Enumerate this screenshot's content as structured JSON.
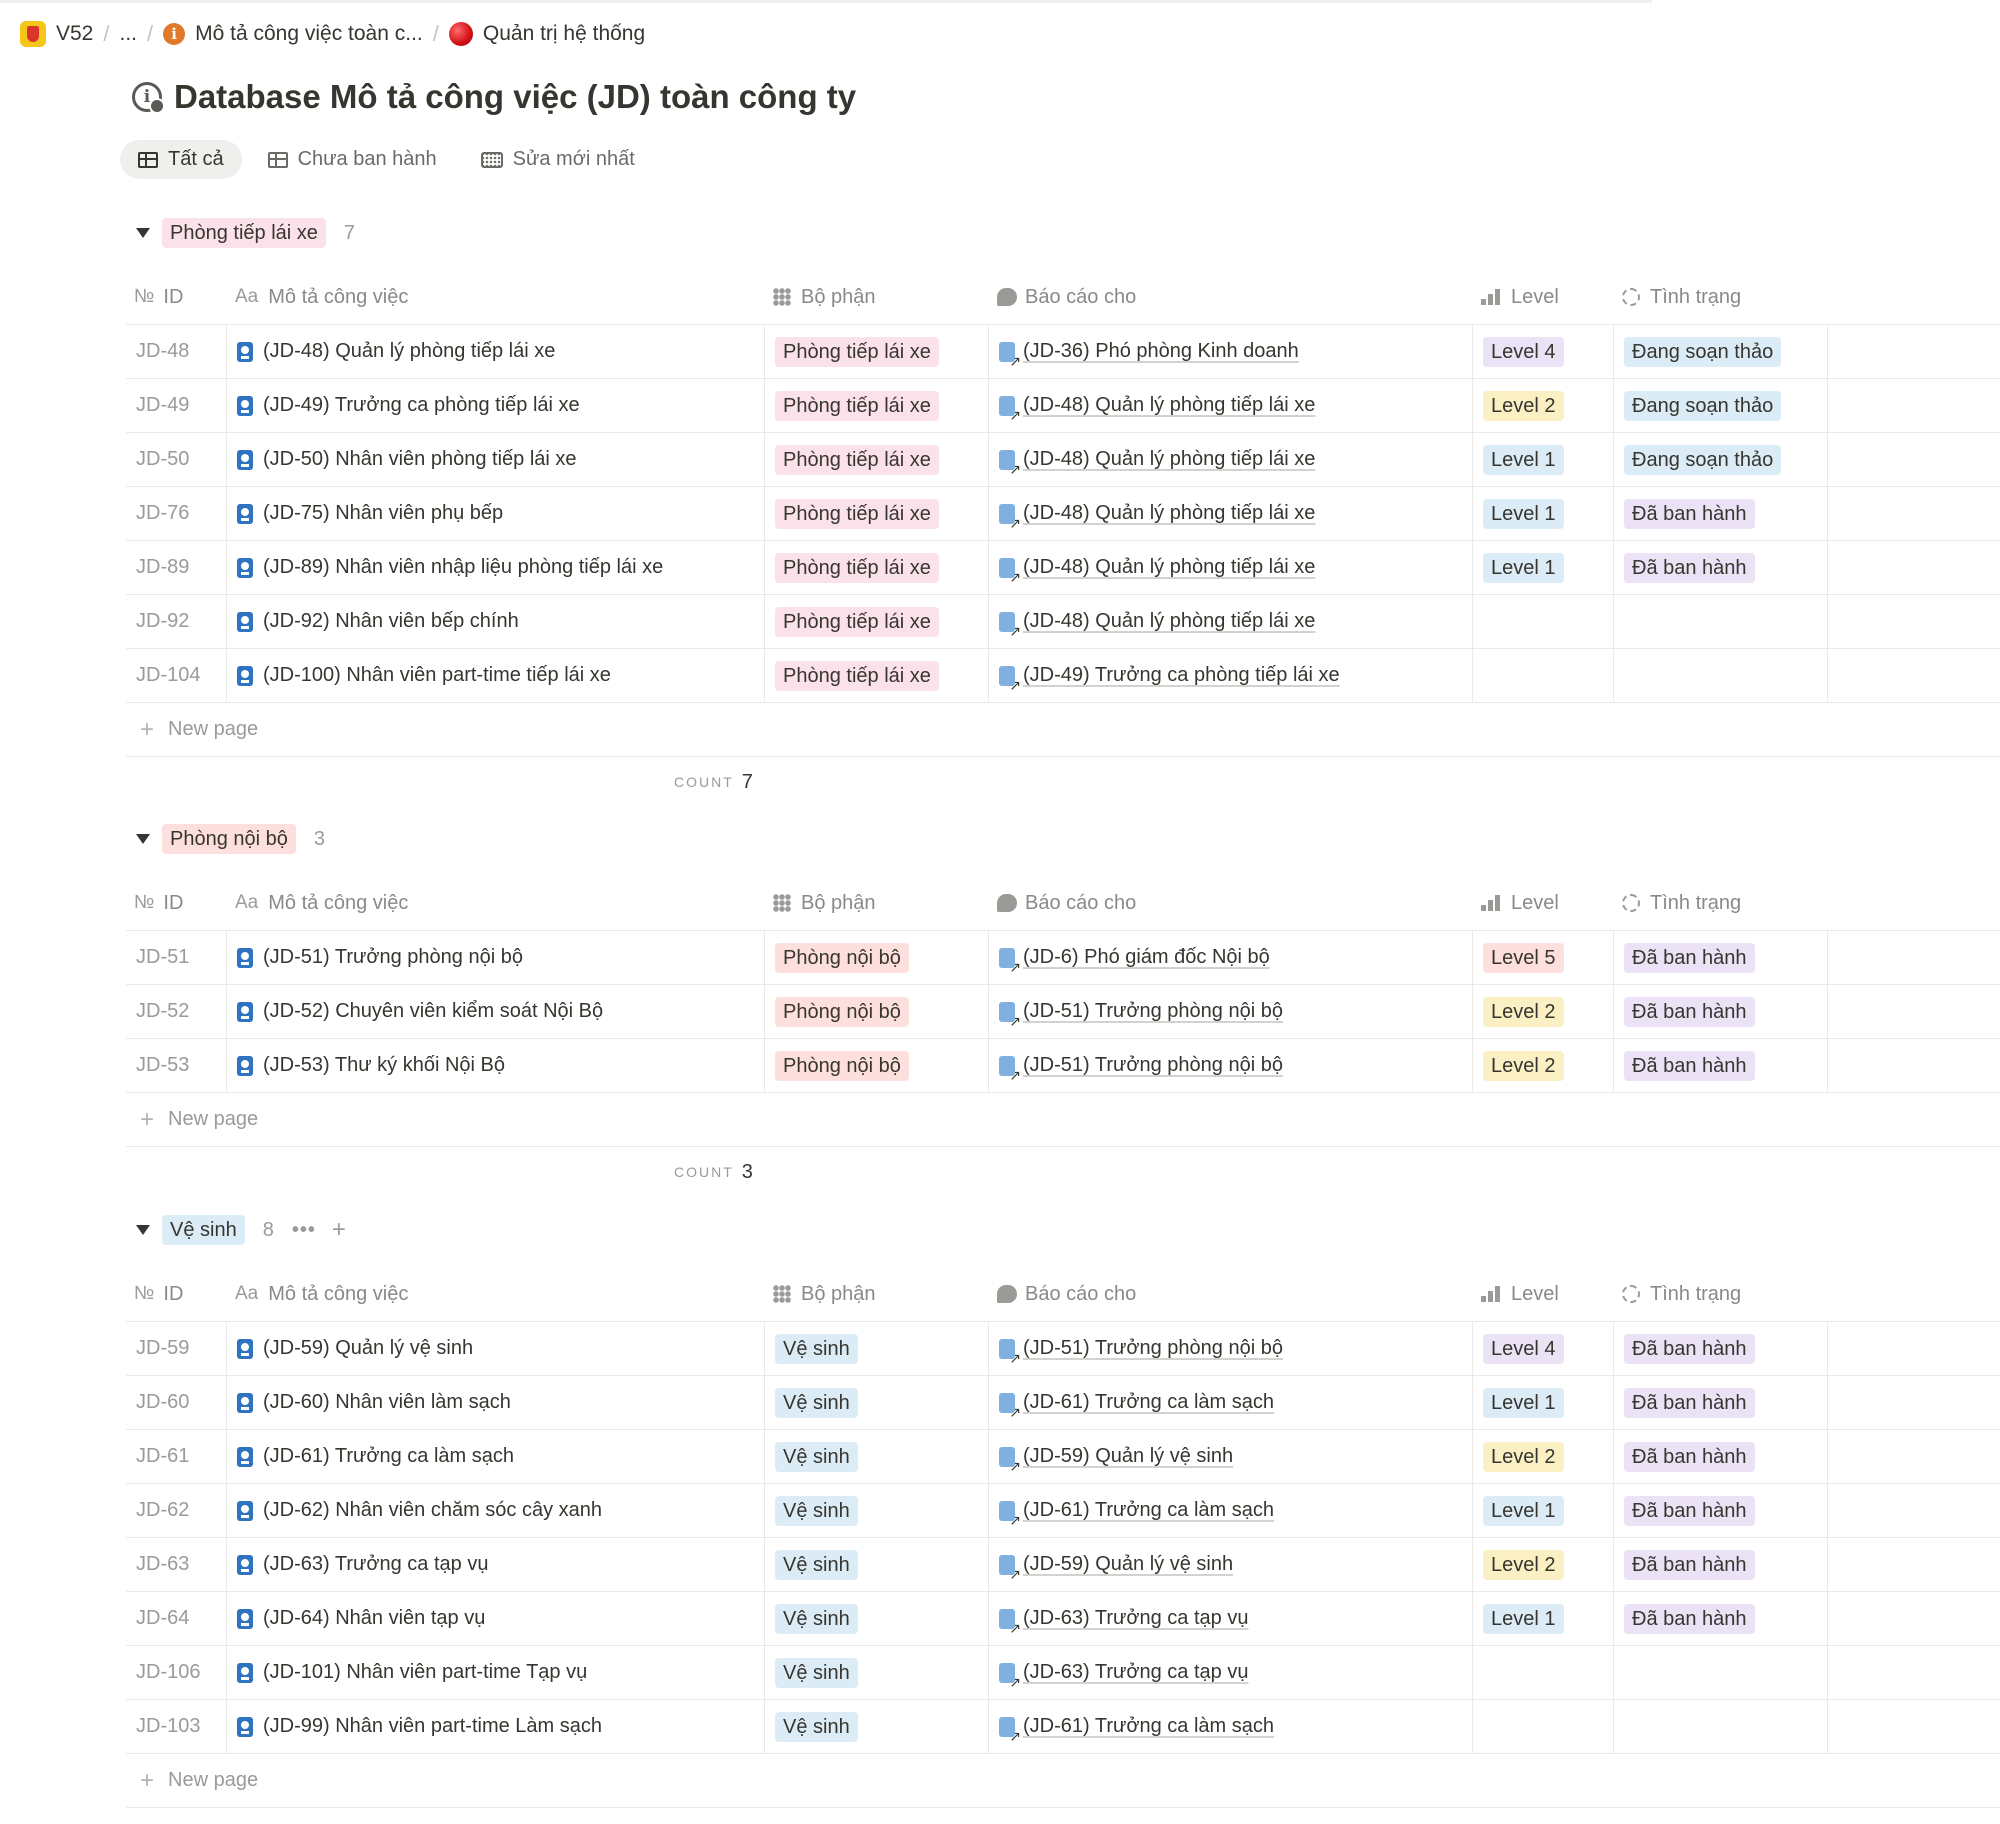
{
  "breadcrumb": {
    "workspace": "V52",
    "ellipsis": "...",
    "parent": "Mô tả công việc toàn c...",
    "current": "Quản trị hệ thống"
  },
  "page": {
    "title": "Database Mô tả công việc (JD) toàn công ty"
  },
  "views": [
    {
      "label": "Tất cả",
      "icon": "table-icon",
      "active": true
    },
    {
      "label": "Chưa ban hành",
      "icon": "table-icon",
      "active": false
    },
    {
      "label": "Sửa mới nhất",
      "icon": "keyboard-icon",
      "active": false
    }
  ],
  "columns": {
    "id": "ID",
    "id_icon": "№",
    "name": "Mô tả công việc",
    "name_icon": "Aa",
    "dept": "Bộ phận",
    "report": "Báo cáo cho",
    "level": "Level",
    "status": "Tình trạng"
  },
  "new_page_label": "New page",
  "count_label": "COUNT",
  "groups": [
    {
      "name": "Phòng tiếp lái xe",
      "count": "7",
      "rows": [
        {
          "id": "JD-48",
          "name": "(JD-48) Quản lý phòng tiếp lái xe",
          "dept": "Phòng tiếp lái xe",
          "report": "(JD-36) Phó phòng Kinh doanh",
          "level": "Level 4",
          "status": "Đang soạn thảo"
        },
        {
          "id": "JD-49",
          "name": "(JD-49) Trưởng ca phòng tiếp lái xe",
          "dept": "Phòng tiếp lái xe",
          "report": "(JD-48) Quản lý phòng tiếp lái xe",
          "level": "Level 2",
          "status": "Đang soạn thảo"
        },
        {
          "id": "JD-50",
          "name": "(JD-50) Nhân viên phòng tiếp lái xe",
          "dept": "Phòng tiếp lái xe",
          "report": "(JD-48) Quản lý phòng tiếp lái xe",
          "level": "Level 1",
          "status": "Đang soạn thảo"
        },
        {
          "id": "JD-76",
          "name": "(JD-75) Nhân viên phụ bếp",
          "dept": "Phòng tiếp lái xe",
          "report": "(JD-48) Quản lý phòng tiếp lái xe",
          "level": "Level 1",
          "status": "Đã ban hành"
        },
        {
          "id": "JD-89",
          "name": "(JD-89) Nhân viên nhập liệu phòng tiếp lái xe",
          "dept": "Phòng tiếp lái xe",
          "report": "(JD-48) Quản lý phòng tiếp lái xe",
          "level": "Level 1",
          "status": "Đã ban hành"
        },
        {
          "id": "JD-92",
          "name": "(JD-92) Nhân viên bếp chính",
          "dept": "Phòng tiếp lái xe",
          "report": "(JD-48) Quản lý phòng tiếp lái xe",
          "level": "",
          "status": ""
        },
        {
          "id": "JD-104",
          "name": "(JD-100) Nhân viên part-time tiếp lái xe",
          "dept": "Phòng tiếp lái xe",
          "report": "(JD-49) Trưởng ca phòng tiếp lái xe",
          "level": "",
          "status": ""
        }
      ]
    },
    {
      "name": "Phòng nội bộ",
      "count": "3",
      "rows": [
        {
          "id": "JD-51",
          "name": "(JD-51) Trưởng phòng nội bộ",
          "dept": "Phòng nội bộ",
          "report": "(JD-6) Phó giám đốc Nội bộ",
          "level": "Level 5",
          "status": "Đã ban hành"
        },
        {
          "id": "JD-52",
          "name": "(JD-52) Chuyên viên kiểm soát Nội Bộ",
          "dept": "Phòng nội bộ",
          "report": "(JD-51) Trưởng phòng nội bộ",
          "level": "Level 2",
          "status": "Đã ban hành"
        },
        {
          "id": "JD-53",
          "name": "(JD-53) Thư ký khối Nội Bộ",
          "dept": "Phòng nội bộ",
          "report": "(JD-51) Trưởng phòng nội bộ",
          "level": "Level 2",
          "status": "Đã ban hành"
        }
      ]
    },
    {
      "name": "Vệ sinh",
      "count": "8",
      "more": "•••",
      "add": "+",
      "rows": [
        {
          "id": "JD-59",
          "name": "(JD-59) Quản lý vệ sinh",
          "dept": "Vệ sinh",
          "report": "(JD-51) Trưởng phòng nội bộ",
          "level": "Level 4",
          "status": "Đã ban hành"
        },
        {
          "id": "JD-60",
          "name": "(JD-60) Nhân viên làm sạch",
          "dept": "Vệ sinh",
          "report": "(JD-61) Trưởng ca làm sạch",
          "level": "Level 1",
          "status": "Đã ban hành"
        },
        {
          "id": "JD-61",
          "name": "(JD-61) Trưởng ca làm sạch",
          "dept": "Vệ sinh",
          "report": "(JD-59) Quản lý vệ sinh",
          "level": "Level 2",
          "status": "Đã ban hành"
        },
        {
          "id": "JD-62",
          "name": "(JD-62) Nhân viên chăm sóc cây xanh",
          "dept": "Vệ sinh",
          "report": "(JD-61) Trưởng ca làm sạch",
          "level": "Level 1",
          "status": "Đã ban hành"
        },
        {
          "id": "JD-63",
          "name": "(JD-63) Trưởng ca tạp vụ",
          "dept": "Vệ sinh",
          "report": "(JD-59) Quản lý vệ sinh",
          "level": "Level 2",
          "status": "Đã ban hành"
        },
        {
          "id": "JD-64",
          "name": "(JD-64) Nhân viên tạp vụ",
          "dept": "Vệ sinh",
          "report": "(JD-63) Trưởng ca tạp vụ",
          "level": "Level 1",
          "status": "Đã ban hành"
        },
        {
          "id": "JD-106",
          "name": "(JD-101) Nhân viên part-time Tạp vụ",
          "dept": "Vệ sinh",
          "report": "(JD-63) Trưởng ca tạp vụ",
          "level": "",
          "status": ""
        },
        {
          "id": "JD-103",
          "name": "(JD-99) Nhân viên part-time Làm sạch",
          "dept": "Vệ sinh",
          "report": "(JD-61) Trưởng ca làm sạch",
          "level": "",
          "status": ""
        }
      ]
    }
  ],
  "colors": {
    "tag_pink": "#fbe2ea",
    "tag_red": "#fde0dd",
    "tag_blue": "#dbecf6",
    "tag_purple": "#ebe2f5",
    "tag_yellow": "#fbefc4",
    "doc_icon": "#2f74c0"
  }
}
